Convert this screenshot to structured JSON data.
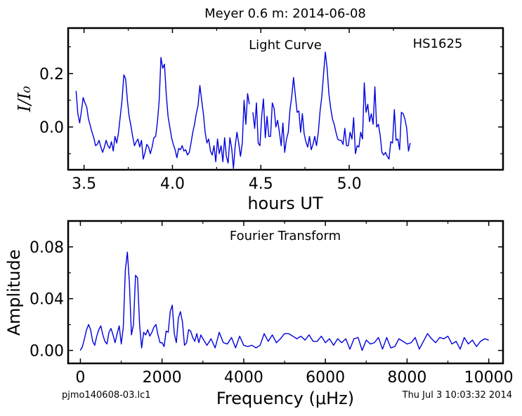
{
  "figure": {
    "title": "Meyer 0.6 m:  2014-06-08",
    "footer_left": "pjmo140608-03.lc1",
    "footer_right": "Thu Jul  3 10:03:32 2014",
    "line_color": "#0000dd"
  },
  "chart_data": [
    {
      "type": "line",
      "annotation_left": "Light Curve",
      "annotation_right": "HS1625",
      "xlabel": "hours UT",
      "ylabel": "I/I₀",
      "xlim": [
        3.41,
        5.87
      ],
      "ylim": [
        -0.16,
        0.37
      ],
      "xticks": [
        3.5,
        4.0,
        4.5,
        5.0
      ],
      "yticks": [
        0.0,
        0.2
      ],
      "xtick_labels": [
        "3.5",
        "4.0",
        "4.5",
        "5.0"
      ],
      "ytick_labels": [
        "0.0",
        "0.2"
      ],
      "grid": false,
      "series": [
        {
          "segments": [
            {
              "x": [
                3.455,
                3.465,
                3.475,
                3.485,
                3.495,
                3.505,
                3.515,
                3.525,
                3.535,
                3.545,
                3.555,
                3.565,
                3.575,
                3.585,
                3.595,
                3.605,
                3.615,
                3.625,
                3.635,
                3.645,
                3.655,
                3.665,
                3.675,
                3.685,
                3.695,
                3.705,
                3.715,
                3.725,
                3.735,
                3.745,
                3.755,
                3.765,
                3.775,
                3.785,
                3.795,
                3.805,
                3.815,
                3.825,
                3.835,
                3.845,
                3.855,
                3.865,
                3.875,
                3.885,
                3.895,
                3.905,
                3.915,
                3.925,
                3.935,
                3.945,
                3.955,
                3.965,
                3.975,
                3.985,
                3.995,
                4.005,
                4.015,
                4.025,
                4.035,
                4.045,
                4.055,
                4.065,
                4.075,
                4.085,
                4.095,
                4.105,
                4.115,
                4.125,
                4.135,
                4.145,
                4.155,
                4.165,
                4.175,
                4.185,
                4.195,
                4.205,
                4.215,
                4.225,
                4.235,
                4.245,
                4.255,
                4.265,
                4.275,
                4.285,
                4.295,
                4.305,
                4.315,
                4.325,
                4.335,
                4.345,
                4.355,
                4.365,
                4.375,
                4.385,
                4.395,
                4.405,
                4.415,
                4.425,
                4.435
              ],
              "y": [
                0.135,
                0.05,
                0.015,
                0.06,
                0.11,
                0.09,
                0.075,
                0.03,
                0.005,
                -0.02,
                -0.04,
                -0.07,
                -0.065,
                -0.05,
                -0.075,
                -0.095,
                -0.075,
                -0.05,
                -0.07,
                -0.08,
                -0.055,
                -0.09,
                -0.035,
                -0.06,
                -0.02,
                0.04,
                0.1,
                0.195,
                0.18,
                0.1,
                0.04,
                0.005,
                -0.035,
                -0.07,
                -0.055,
                -0.045,
                -0.075,
                -0.05,
                -0.12,
                -0.095,
                -0.065,
                -0.075,
                -0.1,
                -0.075,
                -0.04,
                -0.035,
                0.02,
                0.1,
                0.26,
                0.22,
                0.235,
                0.12,
                0.04,
                0.0,
                -0.04,
                -0.065,
                -0.085,
                -0.115,
                -0.08,
                -0.085,
                -0.07,
                -0.09,
                -0.085,
                -0.105,
                -0.095,
                -0.06,
                -0.02,
                0.01,
                0.05,
                0.08,
                0.155,
                0.1,
                0.05,
                -0.02,
                -0.06,
                -0.045,
                -0.09,
                -0.105,
                -0.07,
                -0.13,
                -0.045,
                -0.1,
                -0.07,
                -0.13,
                -0.04,
                -0.11,
                -0.135,
                -0.04,
                -0.08,
                -0.155,
                -0.07,
                -0.02,
                -0.06,
                -0.11,
                -0.06,
                0.1,
                0.01,
                0.125,
                0.085
              ]
            },
            {
              "x": [
                4.455,
                4.465,
                4.475,
                4.485,
                4.495,
                4.505,
                4.515,
                4.525,
                4.535,
                4.545,
                4.555,
                4.565,
                4.575,
                4.585,
                4.595,
                4.605,
                4.615,
                4.625,
                4.635,
                4.645,
                4.655,
                4.665,
                4.675,
                4.685,
                4.695,
                4.705,
                4.715,
                4.725,
                4.735,
                4.745,
                4.755,
                4.765,
                4.775,
                4.785,
                4.795,
                4.805,
                4.815,
                4.825,
                4.835,
                4.845,
                4.855,
                4.865,
                4.875,
                4.885,
                4.895,
                4.905,
                4.915,
                4.925,
                4.935,
                4.945,
                4.955,
                4.965,
                4.975,
                4.985,
                4.995,
                5.005,
                5.015,
                5.025,
                5.035,
                5.045,
                5.055,
                5.065,
                5.075,
                5.085,
                5.095,
                5.105,
                5.115,
                5.125,
                5.135,
                5.145,
                5.155,
                5.165,
                5.175,
                5.185,
                5.195,
                5.205,
                5.215,
                5.225,
                5.235,
                5.245,
                5.255,
                5.265,
                5.275,
                5.285,
                5.295,
                5.305,
                5.315,
                5.325,
                5.335,
                5.345
              ],
              "y": [
                0.055,
                -0.005,
                0.09,
                -0.06,
                -0.07,
                0.04,
                0.105,
                -0.04,
                0.04,
                -0.035,
                -0.035,
                0.09,
                0.07,
                0.0,
                0.025,
                -0.02,
                -0.07,
                0.015,
                -0.095,
                -0.045,
                -0.02,
                0.065,
                0.115,
                0.185,
                0.12,
                0.055,
                0.06,
                -0.02,
                0.05,
                -0.025,
                -0.055,
                -0.075,
                -0.035,
                -0.085,
                -0.065,
                -0.035,
                -0.07,
                -0.02,
                0.06,
                0.115,
                0.2,
                0.28,
                0.22,
                0.125,
                0.07,
                0.03,
                0.01,
                -0.02,
                -0.045,
                -0.05,
                -0.05,
                -0.065,
                -0.005,
                -0.07,
                -0.07,
                -0.02,
                -0.045,
                0.035,
                -0.1,
                -0.07,
                -0.075,
                -0.02,
                -0.045,
                0.165,
                0.055,
                0.085,
                0.02,
                0.05,
                0.01,
                0.15,
                0.0,
                0.01,
                -0.03,
                -0.095,
                -0.105,
                -0.095,
                -0.11,
                -0.12,
                -0.055,
                -0.06,
                0.065,
                -0.05,
                -0.045,
                -0.085,
                0.055,
                0.05,
                0.03,
                -0.005,
                -0.09,
                -0.06
              ]
            }
          ]
        }
      ]
    },
    {
      "type": "line",
      "annotation": "Fourier Transform",
      "xlabel": "Frequency (μHz)",
      "ylabel": "Amplitude",
      "xlim": [
        -300,
        10350
      ],
      "ylim": [
        -0.01,
        0.1
      ],
      "xticks": [
        0,
        2000,
        4000,
        6000,
        8000,
        10000
      ],
      "yticks": [
        0.0,
        0.04,
        0.08
      ],
      "xtick_labels": [
        "0",
        "2000",
        "4000",
        "6000",
        "8000",
        "10000"
      ],
      "ytick_labels": [
        "0.00",
        "0.04",
        "0.08"
      ],
      "grid": false,
      "series": [
        {
          "x": [
            0,
            50,
            100,
            150,
            200,
            250,
            300,
            350,
            400,
            450,
            500,
            550,
            600,
            650,
            700,
            750,
            800,
            850,
            900,
            950,
            1000,
            1050,
            1100,
            1150,
            1200,
            1250,
            1300,
            1350,
            1400,
            1450,
            1500,
            1550,
            1600,
            1650,
            1700,
            1750,
            1800,
            1850,
            1900,
            1950,
            2000,
            2050,
            2100,
            2150,
            2200,
            2250,
            2300,
            2350,
            2400,
            2450,
            2500,
            2550,
            2600,
            2650,
            2700,
            2750,
            2800,
            2850,
            2900,
            2950,
            3000,
            3100,
            3200,
            3300,
            3400,
            3500,
            3600,
            3700,
            3800,
            3900,
            4000,
            4100,
            4200,
            4300,
            4400,
            4500,
            4600,
            4700,
            4800,
            4900,
            5000,
            5100,
            5200,
            5300,
            5400,
            5500,
            5600,
            5700,
            5800,
            5900,
            6000,
            6100,
            6200,
            6300,
            6400,
            6500,
            6600,
            6700,
            6800,
            6900,
            7000,
            7100,
            7200,
            7300,
            7400,
            7500,
            7600,
            7700,
            7800,
            7900,
            8000,
            8100,
            8200,
            8300,
            8400,
            8500,
            8600,
            8700,
            8800,
            8900,
            9000,
            9100,
            9200,
            9300,
            9400,
            9500,
            9600,
            9700,
            9800,
            9900,
            10000
          ],
          "y": [
            0.0,
            0.003,
            0.009,
            0.016,
            0.02,
            0.016,
            0.007,
            0.004,
            0.011,
            0.016,
            0.019,
            0.012,
            0.007,
            0.005,
            0.014,
            0.017,
            0.012,
            0.006,
            0.013,
            0.019,
            0.005,
            0.018,
            0.062,
            0.076,
            0.052,
            0.012,
            0.02,
            0.058,
            0.056,
            0.02,
            0.002,
            0.014,
            0.012,
            0.016,
            0.011,
            0.014,
            0.018,
            0.02,
            0.012,
            0.006,
            0.006,
            0.003,
            0.015,
            0.014,
            0.03,
            0.035,
            0.013,
            0.006,
            0.025,
            0.03,
            0.022,
            0.004,
            0.006,
            0.016,
            0.015,
            0.01,
            0.007,
            0.013,
            0.006,
            0.012,
            0.009,
            0.004,
            0.009,
            0.002,
            0.014,
            0.006,
            0.005,
            0.01,
            0.002,
            0.011,
            0.004,
            0.003,
            0.004,
            0.002,
            0.004,
            0.013,
            0.007,
            0.012,
            0.006,
            0.009,
            0.013,
            0.013,
            0.011,
            0.009,
            0.011,
            0.008,
            0.012,
            0.007,
            0.007,
            0.011,
            0.006,
            0.009,
            0.004,
            0.009,
            0.006,
            0.009,
            0.001,
            0.009,
            0.01,
            0.0,
            0.008,
            0.005,
            0.006,
            0.01,
            0.001,
            0.01,
            0.002,
            0.003,
            0.009,
            0.007,
            0.005,
            0.006,
            0.01,
            0.001,
            0.007,
            0.013,
            0.009,
            0.006,
            0.01,
            0.009,
            0.011,
            0.005,
            0.007,
            0.001,
            0.01,
            0.005,
            0.008,
            0.003,
            0.007,
            0.009,
            0.008
          ]
        }
      ]
    }
  ]
}
